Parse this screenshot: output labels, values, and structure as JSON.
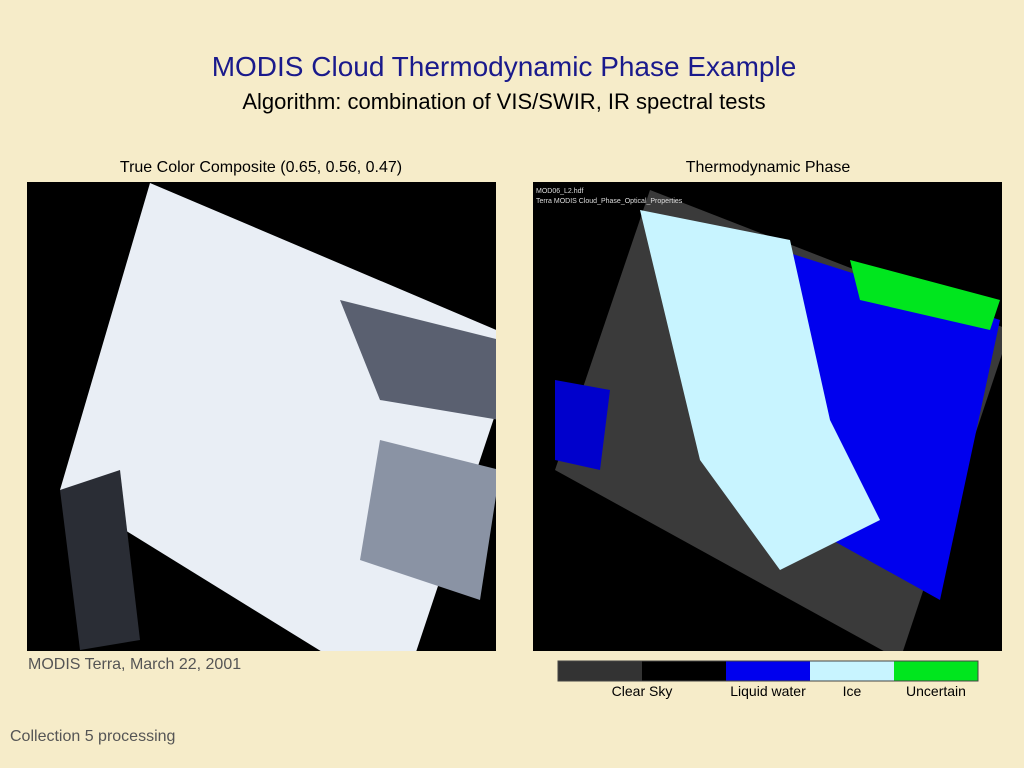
{
  "header": {
    "title": "MODIS Cloud Thermodynamic Phase Example",
    "subtitle": "Algorithm: combination of VIS/SWIR, IR spectral tests"
  },
  "left_panel": {
    "caption": "True Color Composite (0.65, 0.56, 0.47)",
    "note": "MODIS Terra, March 22, 2001"
  },
  "right_panel": {
    "caption": "Thermodynamic Phase",
    "image_header": [
      "MOD06_L2.hdf",
      "Terra MODIS Cloud_Phase_Optical_Properties"
    ],
    "legend": [
      {
        "label": "Clear Sky",
        "colors": [
          "#333333",
          "#000000"
        ]
      },
      {
        "label": "Liquid water",
        "colors": [
          "#0000ee"
        ]
      },
      {
        "label": "Ice",
        "colors": [
          "#c8f4ff"
        ]
      },
      {
        "label": "Uncertain",
        "colors": [
          "#00e61e"
        ]
      }
    ]
  },
  "footer": {
    "text": "Collection 5 processing"
  }
}
